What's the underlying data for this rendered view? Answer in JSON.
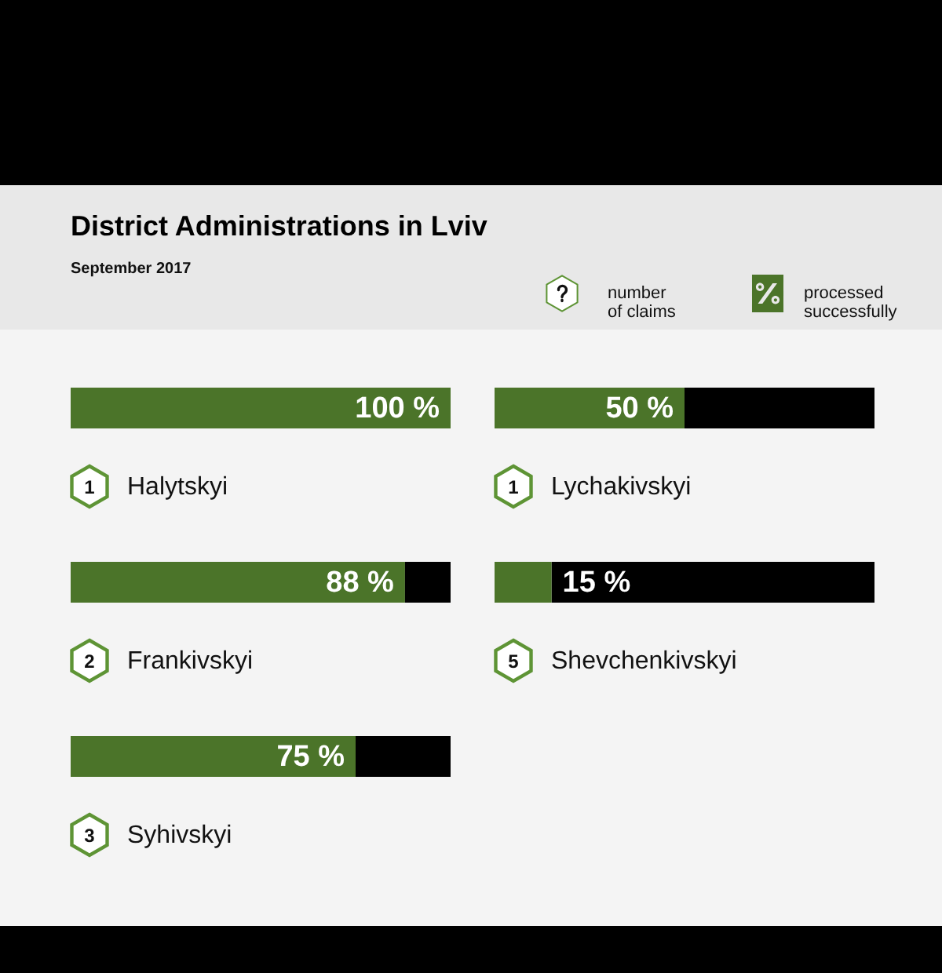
{
  "chart_data": [
    {
      "type": "bar",
      "title": "District Administrations in Lviv",
      "subtitle": "September 2017",
      "orientation": "horizontal",
      "stacked": true,
      "categories": [
        "Halytskyi",
        "Frankivskyi",
        "Syhivskyi"
      ],
      "xlim": [
        0,
        100
      ],
      "tick_labels": "y",
      "series": [
        {
          "color": "#4b7429",
          "values": [
            100,
            88,
            75
          ],
          "value_labels": [
            "100 %",
            "88 %",
            "75 %"
          ]
        },
        {
          "color": "#000000",
          "values": [
            null,
            12,
            25
          ]
        }
      ],
      "annotations": [
        {
          "text": "1",
          "y": "Halytskyi"
        },
        {
          "text": "2",
          "y": "Frankivskyi"
        },
        {
          "text": "3",
          "y": "Syhivskyi"
        }
      ]
    },
    {
      "type": "bar",
      "orientation": "horizontal",
      "stacked": true,
      "categories": [
        "Lychakivskyi",
        "Shevchenkivskyi"
      ],
      "xlim": [
        0,
        100
      ],
      "tick_labels": "y",
      "legend": "top right",
      "series": [
        {
          "name": "processed successfully",
          "color": "#4b7429",
          "values": [
            50,
            15
          ],
          "value_labels": [
            "50 %",
            "15 %"
          ]
        },
        {
          "color": "#000000",
          "values": [
            50,
            85
          ]
        }
      ],
      "annotations": [
        "number of claims",
        {
          "text": "1",
          "y": "Lychakivskyi"
        },
        {
          "text": "5",
          "y": "Shevchenkivskyi"
        }
      ]
    }
  ]
}
